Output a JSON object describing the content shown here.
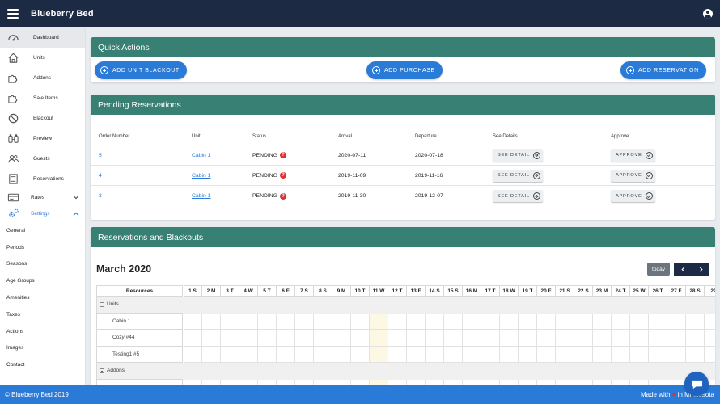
{
  "app": {
    "title": "Blueberry Bed"
  },
  "sidebar": {
    "items": [
      {
        "label": "Dashboard",
        "icon": "speedometer-icon"
      },
      {
        "label": "Units",
        "icon": "home-icon"
      },
      {
        "label": "Addons",
        "icon": "puzzle-icon"
      },
      {
        "label": "Sale Items",
        "icon": "puzzle-icon"
      },
      {
        "label": "Blackout",
        "icon": "block-icon"
      },
      {
        "label": "Preview",
        "icon": "binoculars-icon"
      },
      {
        "label": "Guests",
        "icon": "users-icon"
      },
      {
        "label": "Reservations",
        "icon": "list-icon"
      },
      {
        "label": "Rates",
        "icon": "card-icon"
      },
      {
        "label": "Settings",
        "icon": "gears-icon"
      }
    ],
    "settings_subitems": [
      "General",
      "Periods",
      "Seasons",
      "Age Groups",
      "Amenities",
      "Taxes",
      "Actions",
      "Images",
      "Contact"
    ]
  },
  "quick_actions": {
    "title": "Quick Actions",
    "buttons": [
      "ADD UNIT BLACKOUT",
      "ADD PURCHASE",
      "ADD RESERVATION"
    ]
  },
  "pending": {
    "title": "Pending Reservations",
    "headers": [
      "Order Number",
      "Unit",
      "Status",
      "Arrival",
      "Departure",
      "See Details",
      "Approve"
    ],
    "see_detail_label": "SEE DETAIL",
    "approve_label": "APPROVE",
    "rows": [
      {
        "order": "5",
        "unit": "Cabin 1",
        "status": "PENDING",
        "arrival": "2020-07-11",
        "departure": "2020-07-18"
      },
      {
        "order": "4",
        "unit": "Cabin 1",
        "status": "PENDING",
        "arrival": "2019-11-09",
        "departure": "2019-11-16"
      },
      {
        "order": "3",
        "unit": "Cabin 1",
        "status": "PENDING",
        "arrival": "2019-11-30",
        "departure": "2019-12-07"
      }
    ]
  },
  "calendar": {
    "section_title": "Reservations and Blackouts",
    "month_title": "March 2020",
    "today_label": "today",
    "resources_header": "Resources",
    "today_day": "11 W",
    "days": [
      "1 S",
      "2 M",
      "3 T",
      "4 W",
      "5 T",
      "6 F",
      "7 S",
      "8 S",
      "9 M",
      "10 T",
      "11 W",
      "12 T",
      "13 F",
      "14 S",
      "15 S",
      "16 M",
      "17 T",
      "18 W",
      "19 T",
      "20 F",
      "21 S",
      "22 S",
      "23 M",
      "24 T",
      "25 W",
      "26 T",
      "27 F",
      "28 S",
      "29"
    ],
    "groups": [
      {
        "name": "Units",
        "resources": [
          "Cabin 1",
          "Cozy #44",
          "Testing1 #5"
        ]
      },
      {
        "name": "Addons",
        "resources": [
          ""
        ]
      }
    ]
  },
  "footer": {
    "left": "© Blueberry Bed 2019",
    "made_with": "Made with",
    "in_text": "in Minnesota"
  }
}
